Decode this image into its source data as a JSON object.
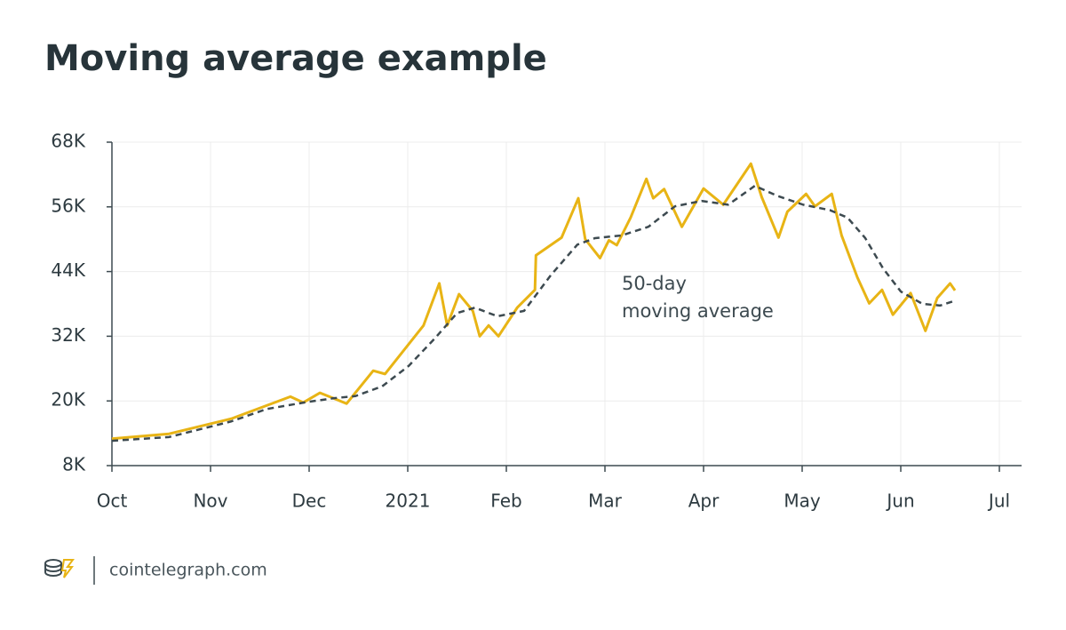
{
  "chart_data": {
    "type": "line",
    "title": "Moving average example",
    "annotation": [
      "50-day",
      "moving average"
    ],
    "source": "cointelegraph.com",
    "xlim": [
      0,
      9
    ],
    "xticks": [
      {
        "value": 0,
        "label": "Oct"
      },
      {
        "value": 1,
        "label": "Nov"
      },
      {
        "value": 2,
        "label": "Dec"
      },
      {
        "value": 3,
        "label": "2021"
      },
      {
        "value": 4,
        "label": "Feb"
      },
      {
        "value": 5,
        "label": "Mar"
      },
      {
        "value": 6,
        "label": "Apr"
      },
      {
        "value": 7,
        "label": "May"
      },
      {
        "value": 8,
        "label": "Jun"
      },
      {
        "value": 9,
        "label": "Jul"
      }
    ],
    "ylim": [
      8,
      68
    ],
    "yticks": [
      {
        "value": 8,
        "label": "8K"
      },
      {
        "value": 20,
        "label": "20K"
      },
      {
        "value": 32,
        "label": "32K"
      },
      {
        "value": 44,
        "label": "44K"
      },
      {
        "value": 56,
        "label": "56K"
      },
      {
        "value": 68,
        "label": "68K"
      }
    ],
    "grid": true,
    "series": [
      {
        "color": "#e8b415",
        "dash": false,
        "x": [
          0,
          0.58,
          1.21,
          1.81,
          1.94,
          2.11,
          2.38,
          2.65,
          2.77,
          3.16,
          3.32,
          3.4,
          3.52,
          3.66,
          3.73,
          3.82,
          3.92,
          4.11,
          4.29,
          4.3,
          4.56,
          4.73,
          4.8,
          4.95,
          5.04,
          5.12,
          5.26,
          5.42,
          5.49,
          5.6,
          5.78,
          6,
          6.2,
          6.48,
          6.59,
          6.76,
          6.85,
          7.04,
          7.13,
          7.3,
          7.4,
          7.56,
          7.68,
          7.81,
          7.92,
          8.1,
          8.25,
          8.37,
          8.5,
          8.55
        ],
        "values": [
          13,
          13.9,
          16.7,
          20.8,
          19.7,
          21.5,
          19.5,
          25.6,
          25,
          34,
          41.8,
          34,
          39.8,
          36.7,
          32,
          34,
          32,
          37.3,
          40.6,
          47,
          50.3,
          57.6,
          50,
          46.5,
          49.8,
          48.9,
          54,
          61.2,
          57.6,
          59.3,
          52.3,
          59.4,
          56.4,
          64,
          57.8,
          50.3,
          55.1,
          58.4,
          56.1,
          58.4,
          50.7,
          42.9,
          38.1,
          40.6,
          36,
          40,
          33,
          39.1,
          41.8,
          40.5
        ]
      },
      {
        "color": "#3d4a50",
        "dash": true,
        "x": [
          0,
          0.58,
          1.21,
          1.57,
          1.98,
          2.25,
          2.47,
          2.74,
          3.01,
          3.28,
          3.5,
          3.68,
          3.91,
          4.18,
          4.45,
          4.72,
          4.9,
          5.17,
          5.44,
          5.71,
          5.98,
          6.25,
          6.52,
          6.74,
          7.01,
          7.28,
          7.46,
          7.64,
          7.82,
          8,
          8.22,
          8.4,
          8.55
        ],
        "values": [
          12.6,
          13.3,
          16.2,
          18.5,
          19.8,
          20.5,
          20.9,
          22.7,
          26.5,
          31.7,
          36.3,
          37.3,
          35.7,
          36.7,
          43.3,
          49,
          50.2,
          50.7,
          52.3,
          56.1,
          57.1,
          56.4,
          59.9,
          58.1,
          56.4,
          55.4,
          54,
          50.2,
          44.6,
          40.3,
          38,
          37.7,
          38.6
        ]
      }
    ]
  }
}
